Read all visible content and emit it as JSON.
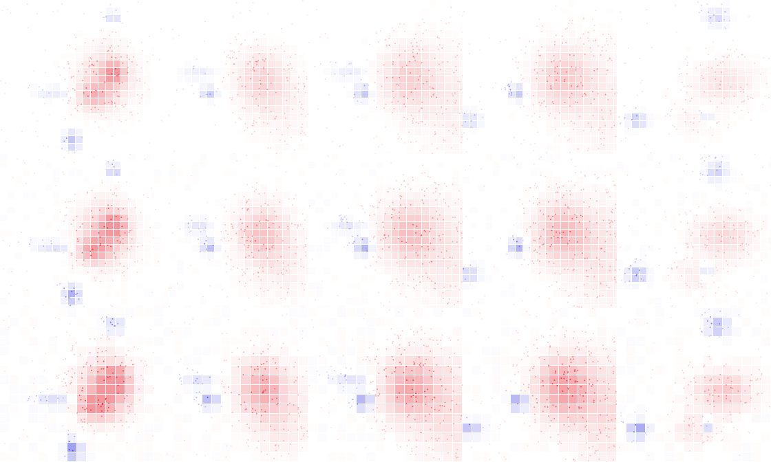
{
  "figure": {
    "rows": 3,
    "cols": 5,
    "colors": {
      "positive": "#e8202a",
      "negative": "#2a2ae0",
      "background": "#ffffff"
    }
  }
}
